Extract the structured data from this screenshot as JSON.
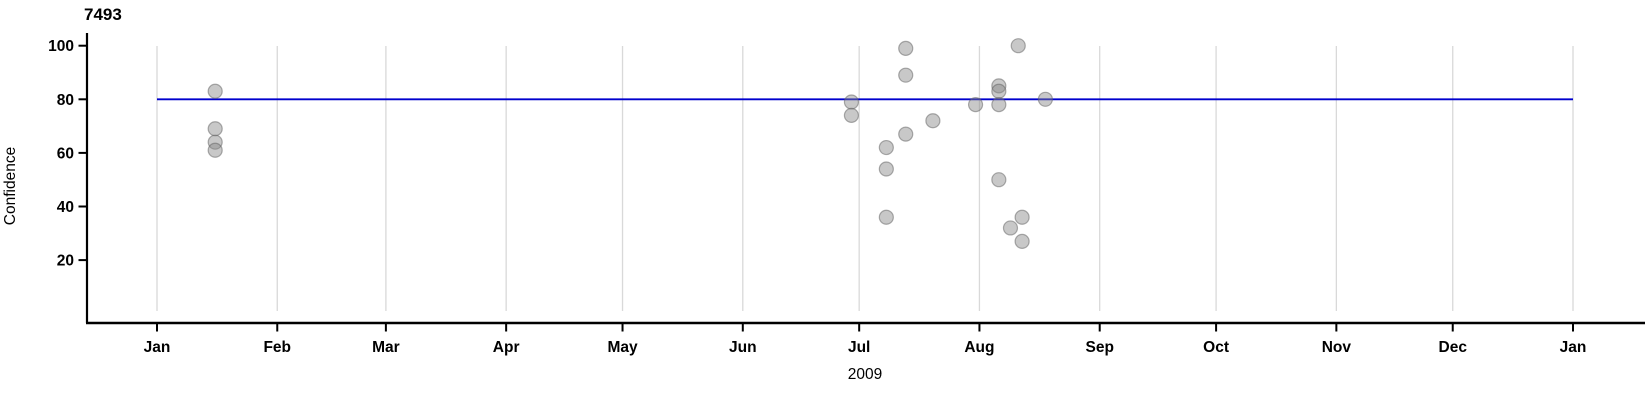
{
  "chart_data": {
    "type": "scatter",
    "title": "7493",
    "xlabel": "2009",
    "ylabel": "Confidence",
    "x_axis": {
      "unit": "month",
      "tick_labels": [
        "Jan",
        "Feb",
        "Mar",
        "Apr",
        "May",
        "Jun",
        "Jul",
        "Aug",
        "Sep",
        "Oct",
        "Nov",
        "Dec",
        "Jan"
      ],
      "range": [
        "2009-01-01",
        "2010-01-01"
      ],
      "grid": true
    },
    "y_axis": {
      "ticks": [
        20,
        40,
        60,
        80,
        100
      ],
      "range": [
        -4,
        106
      ],
      "grid": false
    },
    "legend": "none",
    "reference_line": {
      "value": 80,
      "start": "2009-01-01",
      "end": "2010-01-01",
      "color": "#0000cd"
    },
    "points": [
      {
        "date": "2009-01-16",
        "confidence": 83
      },
      {
        "date": "2009-01-16",
        "confidence": 69
      },
      {
        "date": "2009-01-16",
        "confidence": 64
      },
      {
        "date": "2009-01-16",
        "confidence": 61
      },
      {
        "date": "2009-06-29",
        "confidence": 79
      },
      {
        "date": "2009-06-29",
        "confidence": 74
      },
      {
        "date": "2009-07-08",
        "confidence": 62
      },
      {
        "date": "2009-07-08",
        "confidence": 54
      },
      {
        "date": "2009-07-08",
        "confidence": 36
      },
      {
        "date": "2009-07-13",
        "confidence": 99
      },
      {
        "date": "2009-07-13",
        "confidence": 89
      },
      {
        "date": "2009-07-13",
        "confidence": 67
      },
      {
        "date": "2009-07-20",
        "confidence": 72
      },
      {
        "date": "2009-07-31",
        "confidence": 78
      },
      {
        "date": "2009-08-06",
        "confidence": 85
      },
      {
        "date": "2009-08-06",
        "confidence": 83
      },
      {
        "date": "2009-08-06",
        "confidence": 78
      },
      {
        "date": "2009-08-06",
        "confidence": 50
      },
      {
        "date": "2009-08-09",
        "confidence": 32
      },
      {
        "date": "2009-08-11",
        "confidence": 100
      },
      {
        "date": "2009-08-12",
        "confidence": 36
      },
      {
        "date": "2009-08-12",
        "confidence": 27
      },
      {
        "date": "2009-08-18",
        "confidence": 80
      }
    ],
    "colors": {
      "point_fill": "#868686",
      "point_fill_opacity": 0.45,
      "point_stroke": "#5f5f5f",
      "point_stroke_opacity": 0.5,
      "reference_line": "#0000cd",
      "grid": "#d9d9d9",
      "axis": "#000000"
    }
  }
}
